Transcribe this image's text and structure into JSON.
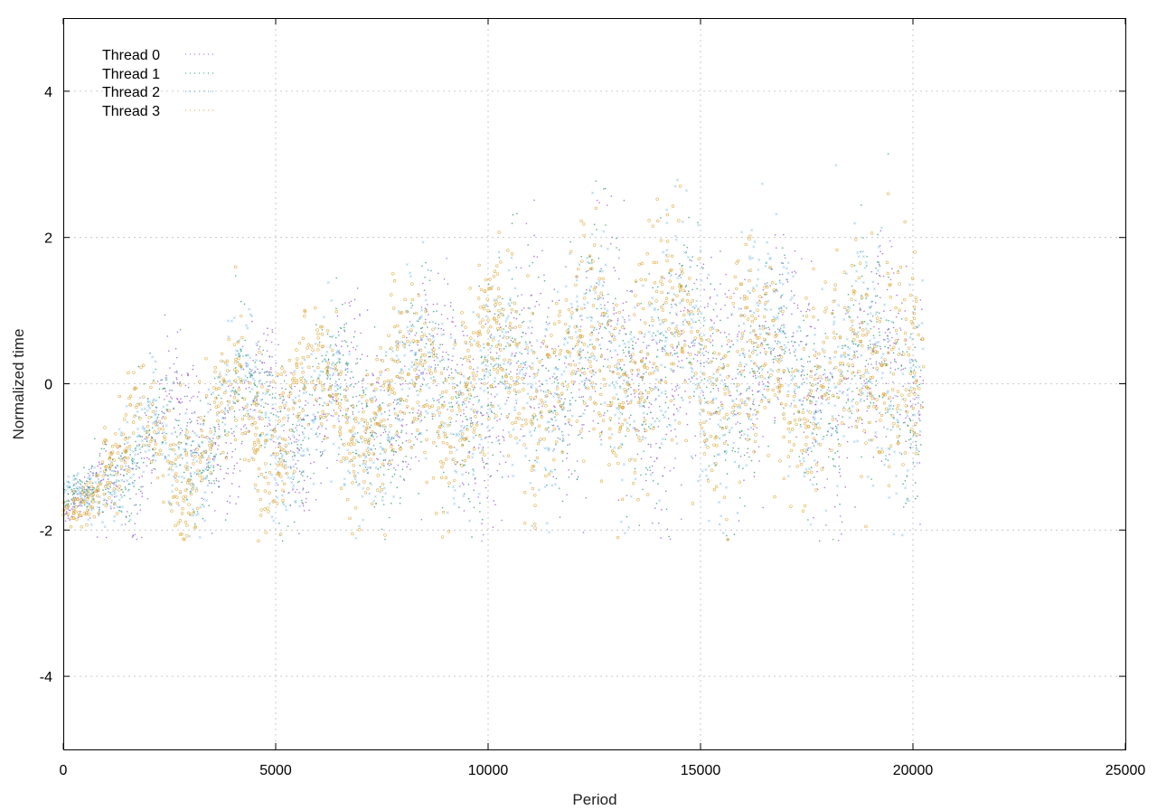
{
  "chart_data": {
    "type": "scatter",
    "title": "",
    "xlabel": "Period",
    "ylabel": "Normalized time",
    "xlim": [
      0,
      25000
    ],
    "ylim": [
      -5,
      5
    ],
    "x_ticks": [
      0,
      5000,
      10000,
      15000,
      20000,
      25000
    ],
    "y_ticks": [
      -4,
      -2,
      0,
      2,
      4
    ],
    "grid": true,
    "legend_position": "top-left",
    "series": [
      {
        "name": "Thread 0",
        "color": "#9b59d0",
        "marker": "dot"
      },
      {
        "name": "Thread 1",
        "color": "#2e9e6e",
        "marker": "dot"
      },
      {
        "name": "Thread 2",
        "color": "#4aa3d8",
        "marker": "cross"
      },
      {
        "name": "Thread 3",
        "color": "#d9a532",
        "marker": "circle"
      }
    ],
    "trend": {
      "x": [
        0,
        500,
        1000,
        1500,
        2500,
        3500,
        5000,
        6500,
        8000,
        9500,
        11000,
        12500,
        14000,
        15500,
        17000,
        18500,
        19500,
        20200
      ],
      "y": [
        -1.8,
        -1.6,
        -1.2,
        -1.0,
        -0.8,
        -0.6,
        -0.4,
        -0.35,
        -0.3,
        0.0,
        0.1,
        0.2,
        0.4,
        0.3,
        0.1,
        -0.1,
        0.4,
        0.1
      ],
      "spread": [
        0.2,
        0.3,
        0.6,
        0.8,
        0.9,
        1.0,
        1.1,
        1.1,
        1.2,
        1.5,
        1.5,
        1.6,
        1.7,
        1.6,
        1.5,
        1.5,
        1.9,
        1.6
      ]
    },
    "points_per_series": 1700,
    "x_max_data": 20250
  }
}
